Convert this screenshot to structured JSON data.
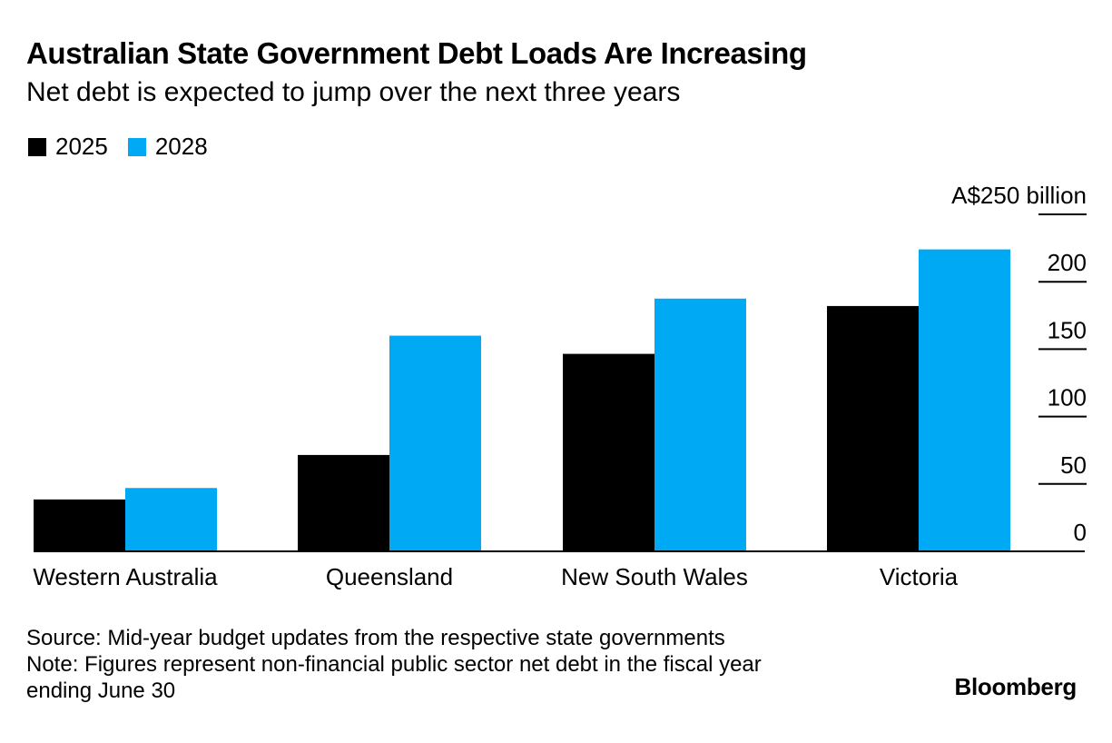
{
  "header": {
    "title": "Australian State Government Debt Loads Are Increasing",
    "subtitle": "Net debt is expected to jump over the next three years"
  },
  "legend": [
    {
      "label": "2025",
      "color": "#000000"
    },
    {
      "label": "2028",
      "color": "#00A9F4"
    }
  ],
  "chart_data": {
    "type": "bar",
    "title": "Australian State Government Debt Loads Are Increasing",
    "subtitle": "Net debt is expected to jump over the next three years",
    "categories": [
      "Western Australia",
      "Queensland",
      "New South Wales",
      "Victoria"
    ],
    "series": [
      {
        "name": "2025",
        "color": "#000000",
        "values": [
          38.5,
          71.5,
          146.5,
          182
        ]
      },
      {
        "name": "2028",
        "color": "#00A9F4",
        "values": [
          47,
          160,
          187.5,
          224
        ]
      }
    ],
    "ylim": [
      0,
      250
    ],
    "yticks": [
      0,
      50,
      100,
      150,
      200,
      250
    ],
    "ytick_labels": [
      "0",
      "50",
      "100",
      "150",
      "200",
      "A$250 billion"
    ],
    "ylabel": "",
    "xlabel": "",
    "grid": false,
    "axis_side": "right",
    "legend_position": "top-left"
  },
  "footer": {
    "source": "Source: Mid-year budget updates from the respective state governments",
    "note_line1": "Note: Figures represent non-financial public sector net debt in the fiscal year",
    "note_line2": "ending June 30",
    "brand": "Bloomberg"
  }
}
